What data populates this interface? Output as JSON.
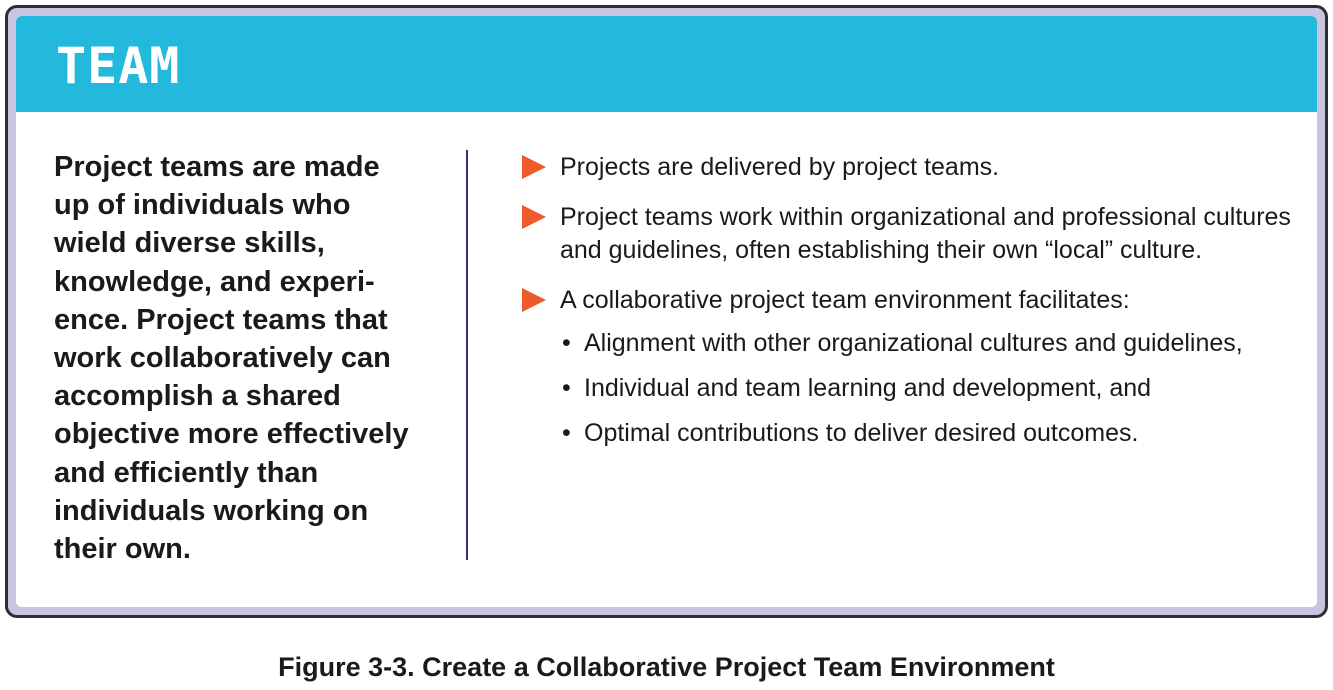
{
  "header": {
    "title": "TEAM",
    "color": "#22b9dd"
  },
  "summary": {
    "text": "Project teams are made up of individuals who wield diverse skills, knowledge, and experi­ence. Project teams that work collaboratively can accomplish a shared objective more effectively and efficiently than individuals working on their own."
  },
  "bullets": [
    {
      "text": "Projects are delivered by project teams."
    },
    {
      "text": "Project teams work within organizational and professional cultures and guidelines, often establishing their own “local” culture."
    },
    {
      "text": "A collaborative project team environment facilitates:"
    }
  ],
  "sub_bullets": [
    {
      "text": "Alignment with other organizational cultures and guidelines,"
    },
    {
      "text": "Individual and team learning and development, and"
    },
    {
      "text": "Optimal contributions to deliver desired outcomes."
    }
  ],
  "caption": "Figure 3-3. Create a Collaborative Project Team Environment",
  "colors": {
    "accent_arrow": "#ee5a2a",
    "frame_fill": "#c9c5e0",
    "divider": "#3b2f73"
  }
}
